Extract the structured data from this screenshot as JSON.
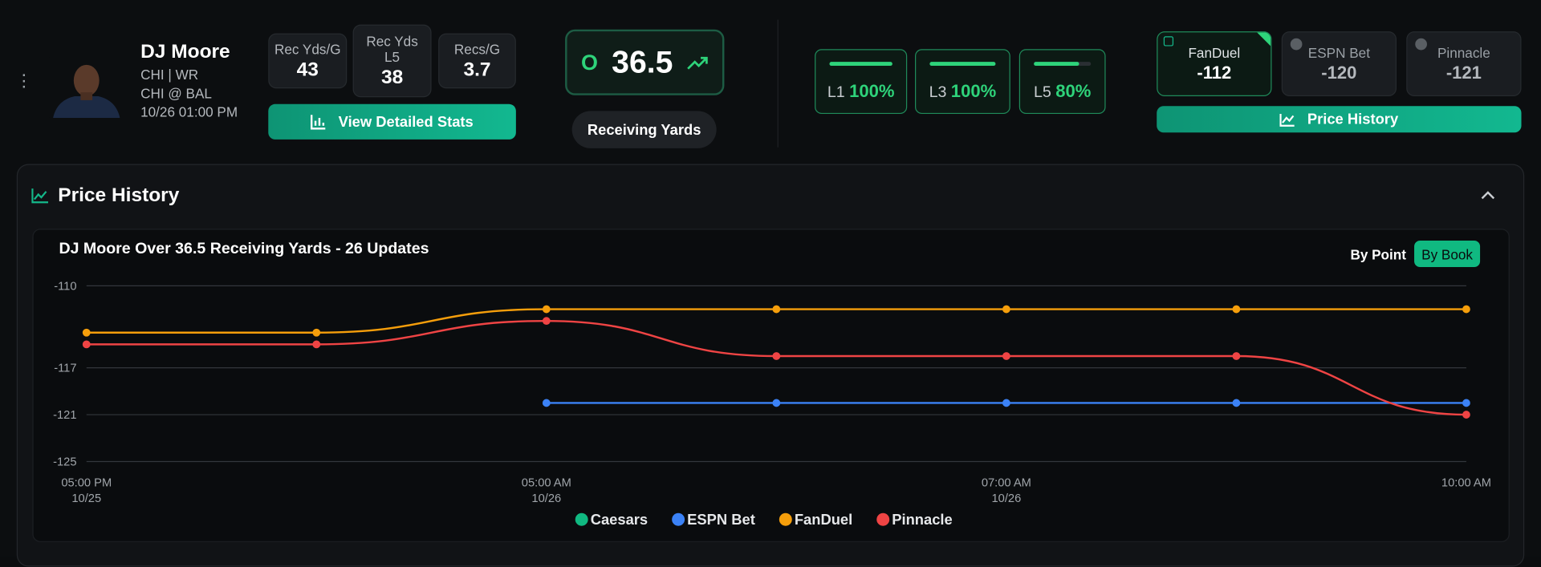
{
  "player": {
    "name": "DJ Moore",
    "team_position": "CHI | WR",
    "matchup": "CHI @ BAL",
    "game_time": "10/26 01:00 PM"
  },
  "stats": [
    {
      "label": "Rec Yds/G",
      "value": 43
    },
    {
      "label": "Rec Yds L5",
      "value": 38
    },
    {
      "label": "Recs/G",
      "value": 3.7
    }
  ],
  "stats_button": "View Detailed Stats",
  "line": {
    "side": "O",
    "value": 36.5,
    "market": "Receiving Yards"
  },
  "hit_rates": [
    {
      "label": "L1",
      "value": 100,
      "value_label": "100%"
    },
    {
      "label": "L3",
      "value": 100,
      "value_label": "100%"
    },
    {
      "label": "L5",
      "value": 80,
      "value_label": "80%"
    }
  ],
  "books": [
    {
      "name": "FanDuel",
      "odds": -112
    },
    {
      "name": "ESPN Bet",
      "odds": -120
    },
    {
      "name": "Pinnacle",
      "odds": -121
    }
  ],
  "price_history_button": "Price History",
  "section_title": "Price History",
  "view_options": [
    "By Point",
    "By Book"
  ],
  "chart_data": {
    "type": "line",
    "title": "DJ Moore Over 36.5 Receiving Yards - 26 Updates",
    "categories": [
      "05:00 PM",
      null,
      "05:00 AM",
      null,
      "07:00 AM",
      null,
      "10:00 AM"
    ],
    "category_dates": [
      "10/25",
      null,
      "10/26",
      null,
      "10/26",
      null,
      null
    ],
    "series": [
      {
        "name": "Caesars",
        "color": "#10b981",
        "values": [
          null,
          null,
          null,
          null,
          null,
          null,
          null
        ]
      },
      {
        "name": "ESPN Bet",
        "color": "#3b82f6",
        "values": [
          null,
          null,
          -120,
          -120,
          -120,
          -120,
          -120
        ]
      },
      {
        "name": "FanDuel",
        "color": "#f59e0b",
        "values": [
          -114,
          -114,
          -112,
          -112,
          -112,
          -112,
          -112
        ]
      },
      {
        "name": "Pinnacle",
        "color": "#ef4444",
        "values": [
          -115,
          -115,
          -113,
          -116,
          -116,
          -116,
          -121
        ]
      }
    ],
    "ylim": [
      -125,
      -110
    ],
    "yticks": [
      -110,
      -117,
      -121,
      -125
    ],
    "grid": true
  }
}
